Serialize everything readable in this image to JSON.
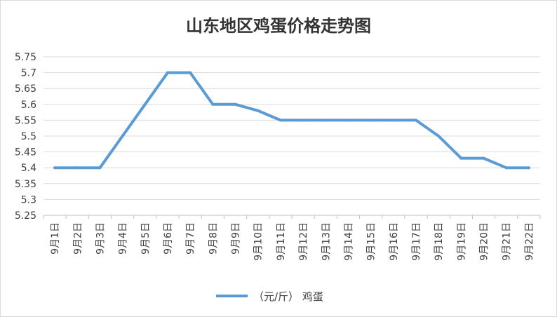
{
  "chart_data": {
    "type": "line",
    "title": "山东地区鸡蛋价格走势图",
    "xlabel": "",
    "ylabel": "",
    "categories": [
      "9月1日",
      "9月2日",
      "9月3日",
      "9月4日",
      "9月5日",
      "9月6日",
      "9月7日",
      "9月8日",
      "9月9日",
      "9月10日",
      "9月11日",
      "9月12日",
      "9月13日",
      "9月14日",
      "9月15日",
      "9月16日",
      "9月17日",
      "9月18日",
      "9月19日",
      "9月20日",
      "9月21日",
      "9月22日"
    ],
    "series": [
      {
        "name": "（元/斤） 鸡蛋",
        "color": "#5b9bd5",
        "values": [
          5.4,
          5.4,
          5.4,
          5.5,
          5.6,
          5.7,
          5.7,
          5.6,
          5.6,
          5.58,
          5.55,
          5.55,
          5.55,
          5.55,
          5.55,
          5.55,
          5.55,
          5.5,
          5.43,
          5.43,
          5.4,
          5.4
        ]
      }
    ],
    "ylim": [
      5.25,
      5.75
    ],
    "yticks": [
      "5.25",
      "5.3",
      "5.35",
      "5.4",
      "5.45",
      "5.5",
      "5.55",
      "5.6",
      "5.65",
      "5.7",
      "5.75"
    ],
    "grid": true,
    "legend": "bottom",
    "gridline_color": "#d9d9d9"
  }
}
